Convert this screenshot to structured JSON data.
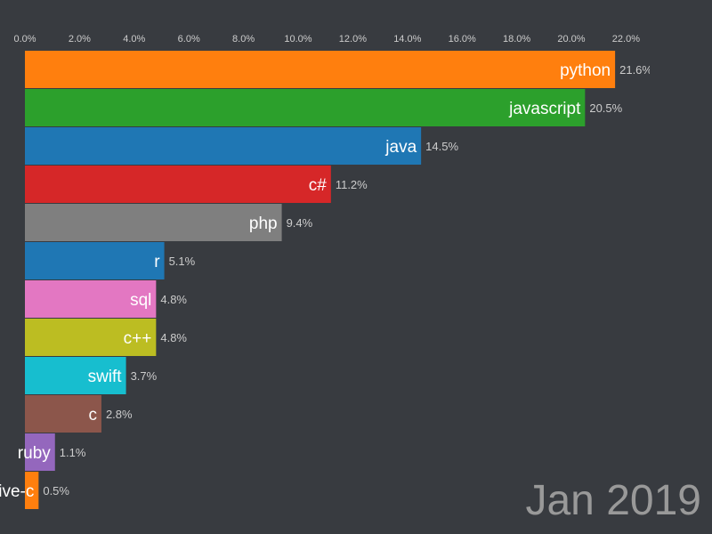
{
  "chart_data": {
    "type": "bar",
    "orientation": "horizontal",
    "title": "",
    "xlabel": "",
    "ylabel": "",
    "date_label": "Jan 2019",
    "xlim": [
      0,
      22
    ],
    "x_ticks": [
      "0.0%",
      "2.0%",
      "4.0%",
      "6.0%",
      "8.0%",
      "10.0%",
      "12.0%",
      "14.0%",
      "16.0%",
      "18.0%",
      "20.0%",
      "22.0%"
    ],
    "x_tick_values": [
      0,
      2,
      4,
      6,
      8,
      10,
      12,
      14,
      16,
      18,
      20,
      22
    ],
    "axis_position": "top",
    "grid": false,
    "categories": [
      "python",
      "javascript",
      "java",
      "c#",
      "php",
      "r",
      "sql",
      "c++",
      "swift",
      "c",
      "ruby",
      "objective-c"
    ],
    "values": [
      21.6,
      20.5,
      14.5,
      11.2,
      9.4,
      5.1,
      4.8,
      4.8,
      3.7,
      2.8,
      1.1,
      0.5
    ],
    "value_labels": [
      "21.6%",
      "20.5%",
      "14.5%",
      "11.2%",
      "9.4%",
      "5.1%",
      "4.8%",
      "4.8%",
      "3.7%",
      "2.8%",
      "1.1%",
      "0.5%"
    ],
    "colors": [
      "#ff7f0e",
      "#2ca02c",
      "#1f77b4",
      "#d62728",
      "#7f7f7f",
      "#1f77b4",
      "#e377c2",
      "#bcbd22",
      "#17becf",
      "#8c564b",
      "#9467bd",
      "#ff7f0e"
    ]
  },
  "style": {
    "background": "#383b40",
    "tick_color": "#cccccc",
    "value_label_color": "#cccccc",
    "bar_label_color": "#ffffff",
    "date_color": "#999999"
  }
}
